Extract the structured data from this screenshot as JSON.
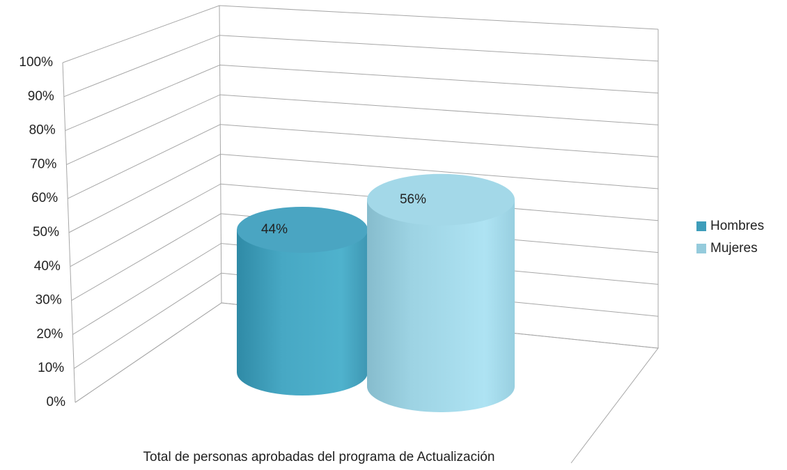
{
  "chart_data": {
    "type": "bar3d",
    "categories": [
      "Total de personas aprobadas del programa de Actualización"
    ],
    "series": [
      {
        "name": "Hombres",
        "color": "#4aa5c2",
        "values": [
          44
        ],
        "value_labels": [
          "44%"
        ]
      },
      {
        "name": "Mujeres",
        "color": "#a3d8e8",
        "values": [
          56
        ],
        "value_labels": [
          "56%"
        ]
      }
    ],
    "ylim": [
      0,
      100
    ],
    "yticks": [
      {
        "value": 0,
        "label": "0%"
      },
      {
        "value": 10,
        "label": "10%"
      },
      {
        "value": 20,
        "label": "20%"
      },
      {
        "value": 30,
        "label": "30%"
      },
      {
        "value": 40,
        "label": "40%"
      },
      {
        "value": 50,
        "label": "50%"
      },
      {
        "value": 60,
        "label": "60%"
      },
      {
        "value": 70,
        "label": "70%"
      },
      {
        "value": 80,
        "label": "80%"
      },
      {
        "value": 90,
        "label": "90%"
      },
      {
        "value": 100,
        "label": "100%"
      }
    ],
    "grid": true,
    "legend": "right"
  }
}
